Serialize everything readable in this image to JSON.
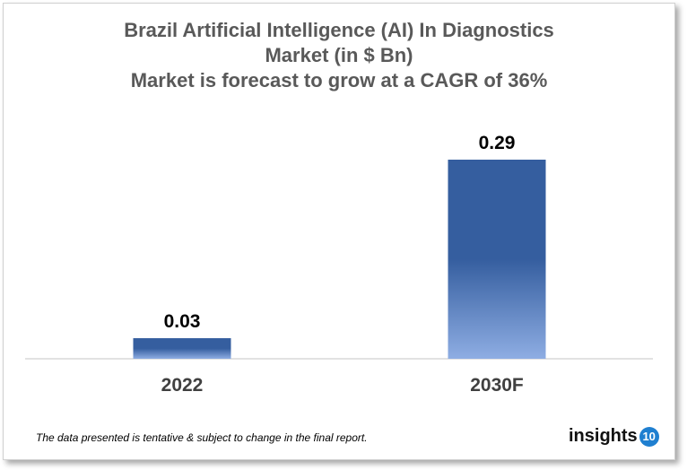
{
  "chart_data": {
    "type": "bar",
    "title": [
      "Brazil Artificial Intelligence (AI) In Diagnostics",
      "Market  (in $ Bn)",
      "Market is forecast to grow at a CAGR of 36%"
    ],
    "categories": [
      "2022",
      "2030F"
    ],
    "values": [
      0.03,
      0.29
    ],
    "data_labels": [
      "0.03",
      "0.29"
    ],
    "xlabel": "",
    "ylabel": "",
    "ylim": [
      0,
      0.29
    ],
    "grid": false,
    "bar_color_top": "#355E9F",
    "bar_color_bottom": "#8EADE3"
  },
  "footnote": "The data presented is tentative & subject to change in the final report.",
  "logo": {
    "text": "insights",
    "badge": "10"
  }
}
